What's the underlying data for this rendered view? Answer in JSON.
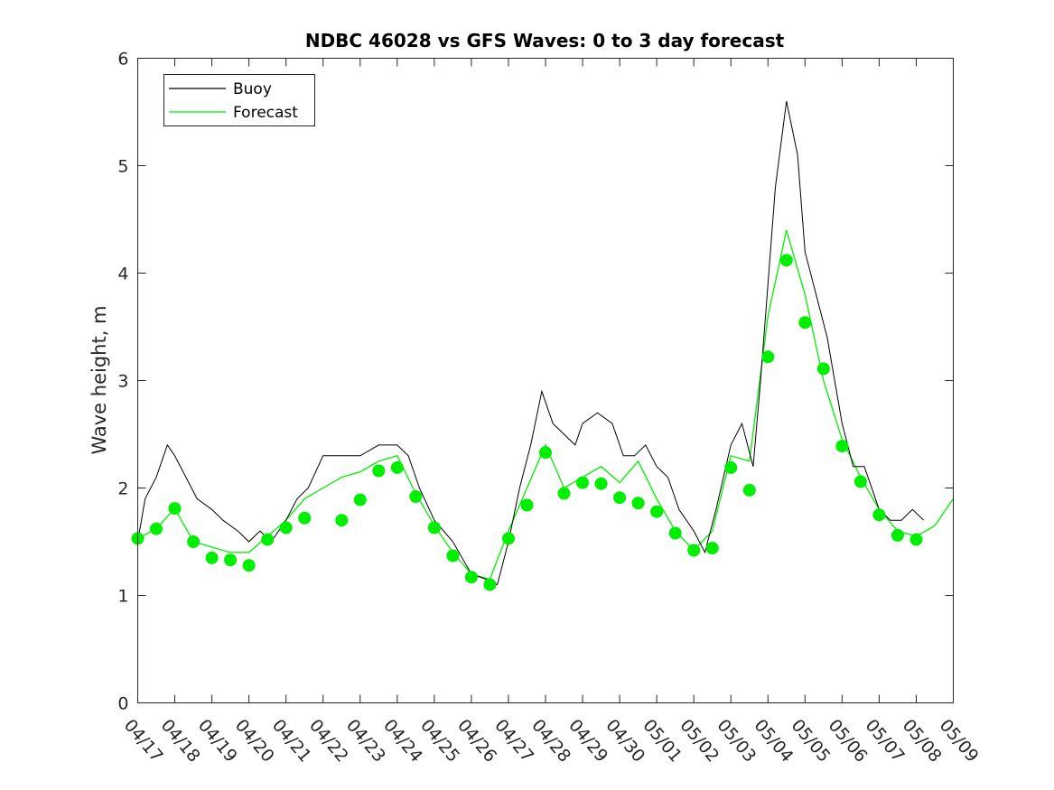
{
  "chart_data": {
    "type": "line",
    "title": "NDBC 46028 vs GFS Waves: 0 to 3 day forecast",
    "xlabel": "",
    "ylabel": "Wave height, m",
    "ylim": [
      0,
      6
    ],
    "yticks": [
      "0",
      "1",
      "2",
      "3",
      "4",
      "5",
      "6"
    ],
    "x_tick_labels": [
      "04/17",
      "04/18",
      "04/19",
      "04/20",
      "04/21",
      "04/22",
      "04/23",
      "04/24",
      "04/25",
      "04/26",
      "04/27",
      "04/28",
      "04/29",
      "04/30",
      "05/01",
      "05/02",
      "05/03",
      "05/04",
      "05/05",
      "05/06",
      "05/07",
      "05/08",
      "05/09"
    ],
    "x_unit": "day index from 04/17",
    "xlim": [
      0,
      22
    ],
    "grid": false,
    "legend_position": "top-left",
    "legend": [
      "Buoy",
      "Forecast"
    ],
    "colors": {
      "buoy": "#000000",
      "forecast": "#00ee00"
    },
    "series": [
      {
        "name": "Buoy",
        "points": [
          [
            0,
            1.5
          ],
          [
            0.2,
            1.9
          ],
          [
            0.5,
            2.1
          ],
          [
            0.8,
            2.4
          ],
          [
            1,
            2.3
          ],
          [
            1.3,
            2.1
          ],
          [
            1.6,
            1.9
          ],
          [
            2,
            1.8
          ],
          [
            2.3,
            1.7
          ],
          [
            2.7,
            1.6
          ],
          [
            3,
            1.5
          ],
          [
            3.3,
            1.6
          ],
          [
            3.6,
            1.5
          ],
          [
            4,
            1.7
          ],
          [
            4.3,
            1.9
          ],
          [
            4.6,
            2.0
          ],
          [
            5,
            2.3
          ],
          [
            5.5,
            2.3
          ],
          [
            6,
            2.3
          ],
          [
            6.5,
            2.4
          ],
          [
            7,
            2.4
          ],
          [
            7.3,
            2.3
          ],
          [
            7.6,
            2.0
          ],
          [
            8,
            1.7
          ],
          [
            8.5,
            1.5
          ],
          [
            9,
            1.2
          ],
          [
            9.4,
            1.15
          ],
          [
            9.7,
            1.1
          ],
          [
            10,
            1.5
          ],
          [
            10.3,
            2.0
          ],
          [
            10.6,
            2.4
          ],
          [
            10.9,
            2.9
          ],
          [
            11.2,
            2.6
          ],
          [
            11.5,
            2.5
          ],
          [
            11.8,
            2.4
          ],
          [
            12,
            2.6
          ],
          [
            12.4,
            2.7
          ],
          [
            12.8,
            2.6
          ],
          [
            13.1,
            2.3
          ],
          [
            13.4,
            2.3
          ],
          [
            13.7,
            2.4
          ],
          [
            14,
            2.2
          ],
          [
            14.3,
            2.1
          ],
          [
            14.6,
            1.8
          ],
          [
            15,
            1.6
          ],
          [
            15.3,
            1.4
          ],
          [
            15.6,
            1.8
          ],
          [
            16,
            2.4
          ],
          [
            16.3,
            2.6
          ],
          [
            16.6,
            2.2
          ],
          [
            16.8,
            3.0
          ],
          [
            17.2,
            4.8
          ],
          [
            17.5,
            5.6
          ],
          [
            17.8,
            5.1
          ],
          [
            18,
            4.2
          ],
          [
            18.3,
            3.8
          ],
          [
            18.6,
            3.4
          ],
          [
            19,
            2.6
          ],
          [
            19.3,
            2.2
          ],
          [
            19.6,
            2.2
          ],
          [
            20,
            1.8
          ],
          [
            20.3,
            1.7
          ],
          [
            20.6,
            1.7
          ],
          [
            20.9,
            1.8
          ],
          [
            21.2,
            1.7
          ]
        ]
      },
      {
        "name": "Forecast",
        "markers": [
          [
            0,
            1.53
          ],
          [
            0.5,
            1.62
          ],
          [
            1,
            1.81
          ],
          [
            1.5,
            1.5
          ],
          [
            2,
            1.35
          ],
          [
            2.5,
            1.33
          ],
          [
            3,
            1.28
          ],
          [
            3.5,
            1.52
          ],
          [
            4,
            1.63
          ],
          [
            4.5,
            1.72
          ],
          [
            5.5,
            1.7
          ],
          [
            6,
            1.89
          ],
          [
            6.5,
            2.16
          ],
          [
            7,
            2.19
          ],
          [
            7.5,
            1.92
          ],
          [
            8,
            1.63
          ],
          [
            8.5,
            1.37
          ],
          [
            9,
            1.17
          ],
          [
            9.5,
            1.1
          ],
          [
            10,
            1.53
          ],
          [
            10.5,
            1.84
          ],
          [
            11,
            2.33
          ],
          [
            11.5,
            1.95
          ],
          [
            12,
            2.05
          ],
          [
            12.5,
            2.04
          ],
          [
            13,
            1.91
          ],
          [
            13.5,
            1.86
          ],
          [
            14,
            1.78
          ],
          [
            14.5,
            1.58
          ],
          [
            15,
            1.42
          ],
          [
            15.5,
            1.44
          ],
          [
            16,
            2.19
          ],
          [
            16.5,
            1.98
          ],
          [
            17,
            3.22
          ],
          [
            17.5,
            4.12
          ],
          [
            18,
            3.54
          ],
          [
            18.5,
            3.11
          ],
          [
            19,
            2.39
          ],
          [
            19.5,
            2.06
          ],
          [
            20,
            1.75
          ],
          [
            20.5,
            1.56
          ],
          [
            21,
            1.52
          ]
        ],
        "line": [
          [
            0,
            1.53
          ],
          [
            0.5,
            1.62
          ],
          [
            1,
            1.81
          ],
          [
            1.5,
            1.5
          ],
          [
            2,
            1.45
          ],
          [
            2.5,
            1.4
          ],
          [
            3,
            1.4
          ],
          [
            3.5,
            1.55
          ],
          [
            4,
            1.7
          ],
          [
            4.5,
            1.9
          ],
          [
            5,
            2.0
          ],
          [
            5.5,
            2.1
          ],
          [
            6,
            2.15
          ],
          [
            6.5,
            2.25
          ],
          [
            7,
            2.3
          ],
          [
            7.5,
            1.95
          ],
          [
            8,
            1.65
          ],
          [
            8.5,
            1.4
          ],
          [
            9,
            1.2
          ],
          [
            9.5,
            1.15
          ],
          [
            10,
            1.6
          ],
          [
            10.5,
            2.0
          ],
          [
            11,
            2.4
          ],
          [
            11.5,
            2.0
          ],
          [
            12,
            2.1
          ],
          [
            12.5,
            2.2
          ],
          [
            13,
            2.05
          ],
          [
            13.5,
            2.25
          ],
          [
            14,
            1.9
          ],
          [
            14.5,
            1.6
          ],
          [
            15,
            1.42
          ],
          [
            15.5,
            1.6
          ],
          [
            16,
            2.3
          ],
          [
            16.5,
            2.25
          ],
          [
            17,
            3.6
          ],
          [
            17.5,
            4.4
          ],
          [
            18,
            3.8
          ],
          [
            18.5,
            3.0
          ],
          [
            19,
            2.45
          ],
          [
            19.5,
            2.1
          ],
          [
            20,
            1.8
          ],
          [
            20.5,
            1.6
          ],
          [
            21,
            1.55
          ],
          [
            21.5,
            1.65
          ],
          [
            22,
            1.9
          ]
        ]
      }
    ]
  }
}
